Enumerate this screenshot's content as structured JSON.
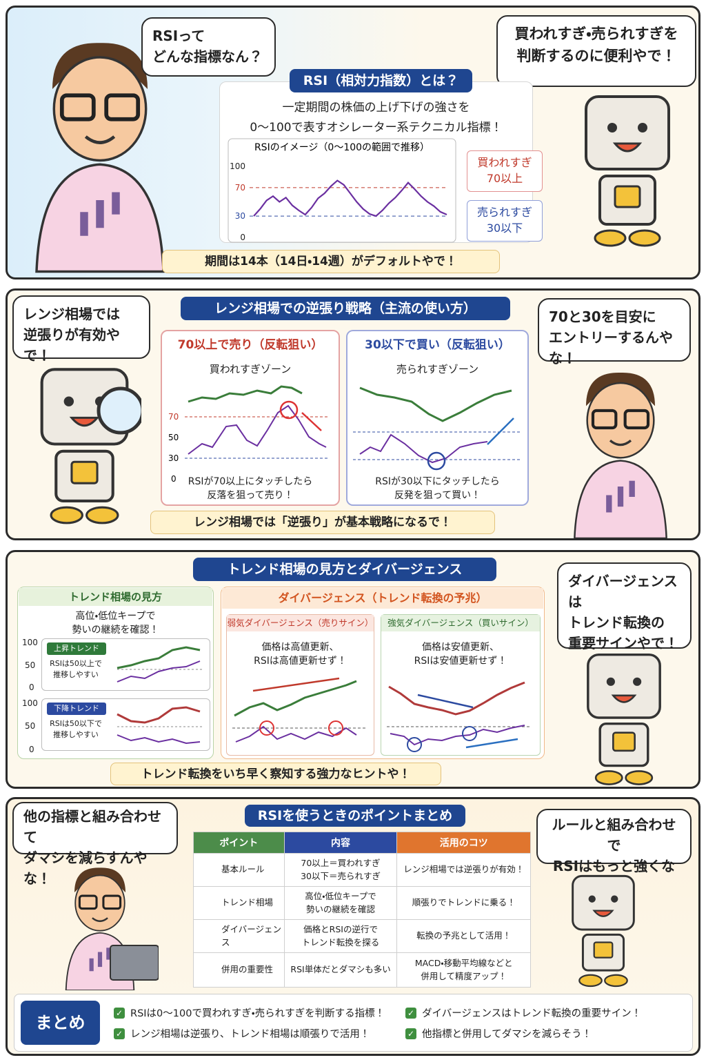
{
  "panel1": {
    "bubble_left": [
      "RSIって",
      "どんな指標なん？"
    ],
    "bubble_right": [
      "買われすぎ・売られすぎを",
      "判断するのに便利やで！"
    ],
    "title": "RSI（相対力指数）とは？",
    "description": [
      "一定期間の株価の上げ下げの強さを",
      "0〜100で表すオシレーター系テクニカル指標！"
    ],
    "rsi_chart": {
      "type": "line",
      "title": "RSIのイメージ（0〜100の範囲で推移）",
      "ylim": [
        0,
        100
      ],
      "yticks": [
        0,
        30,
        70,
        100
      ],
      "color": "#6a2fa0",
      "values": [
        30,
        40,
        52,
        58,
        50,
        56,
        45,
        38,
        32,
        42,
        55,
        62,
        72,
        80,
        74,
        62,
        50,
        40,
        33,
        30,
        38,
        48,
        56,
        66,
        77,
        68,
        58,
        50,
        44,
        36,
        32
      ]
    },
    "overbought": [
      "買われすぎ",
      "70以上"
    ],
    "oversold": [
      "売られすぎ",
      "30以下"
    ],
    "tip": "期間は14本（14日・14週）がデフォルトやで！"
  },
  "panel2": {
    "bubble_left": [
      "レンジ相場では",
      "逆張りが有効やで！"
    ],
    "title": "レンジ相場での逆張り戦略（主流の使い方）",
    "bubble_right": [
      "70と30を目安に",
      "エントリーするんやな！"
    ],
    "sell_card": {
      "heading": "70以上で売り（反転狙い）",
      "zone": "買われすぎゾーン",
      "axis": [
        "70",
        "50",
        "30",
        "0"
      ],
      "caption": [
        "RSIが70以上にタッチしたら",
        "反落を狙って売り！"
      ]
    },
    "buy_card": {
      "heading": "30以下で買い（反転狙い）",
      "zone": "売られすぎゾーン",
      "caption": [
        "RSIが30以下にタッチしたら",
        "反発を狙って買い！"
      ]
    },
    "tip": "レンジ相場では「逆張り」が基本戦略になるで！"
  },
  "panel3": {
    "title": "トレンド相場の見方とダイバージェンス",
    "bubble_right": [
      "ダイバージェンスは",
      "トレンド転換の",
      "重要サインやで！"
    ],
    "trend_card": {
      "heading": "トレンド相場の見方",
      "description": [
        "高位・低位キープで",
        "勢いの継続を確認！"
      ],
      "up": {
        "badge": "上昇トレンド",
        "text": [
          "RSIは50以上で",
          "推移しやすい"
        ],
        "axis": [
          "100",
          "50",
          "0"
        ]
      },
      "down": {
        "badge": "下降トレンド",
        "text": [
          "RSIは50以下で",
          "推移しやすい"
        ],
        "axis": [
          "100",
          "50",
          "0"
        ]
      }
    },
    "divergence_card": {
      "heading": "ダイバージェンス（トレンド転換の予兆）",
      "bearish": {
        "heading": "弱気ダイバージェンス（売りサイン）",
        "text": [
          "価格は高値更新、",
          "RSIは高値更新せず！"
        ]
      },
      "bullish": {
        "heading": "強気ダイバージェンス（買いサイン）",
        "text": [
          "価格は安値更新、",
          "RSIは安値更新せず！"
        ]
      }
    },
    "tip": "トレンド転換をいち早く察知する強力なヒントや！"
  },
  "panel4": {
    "bubble_left": [
      "他の指標と組み合わせて",
      "ダマシを減らすんやな！"
    ],
    "title": "RSIを使うときのポイントまとめ",
    "bubble_right": [
      "ルールと組み合わせで",
      "RSIはもっと強くなるで！"
    ],
    "table": {
      "headers": [
        "ポイント",
        "内容",
        "活用のコツ"
      ],
      "rows": [
        [
          [
            "基本ルール"
          ],
          [
            "70以上＝買われすぎ",
            "30以下＝売られすぎ"
          ],
          [
            "レンジ相場では逆張りが有効！"
          ]
        ],
        [
          [
            "トレンド相場"
          ],
          [
            "高位・低位キープで",
            "勢いの継続を確認"
          ],
          [
            "順張りでトレンドに乗る！"
          ]
        ],
        [
          [
            "ダイバージェンス"
          ],
          [
            "価格とRSIの逆行で",
            "トレンド転換を探る"
          ],
          [
            "転換の予兆として活用！"
          ]
        ],
        [
          [
            "併用の重要性"
          ],
          [
            "RSI単体だとダマシも多い"
          ],
          [
            "MACD・移動平均線などと",
            "併用して精度アップ！"
          ]
        ]
      ]
    },
    "summary": {
      "label": "まとめ",
      "items": [
        "RSIは0〜100で買われすぎ・売られすぎを判断する指標！",
        "レンジ相場は逆張り、トレンド相場は順張りで活用！",
        "ダイバージェンスはトレンド転換の重要サイン！",
        "他指標と併用してダマシを減らそう！"
      ]
    }
  }
}
